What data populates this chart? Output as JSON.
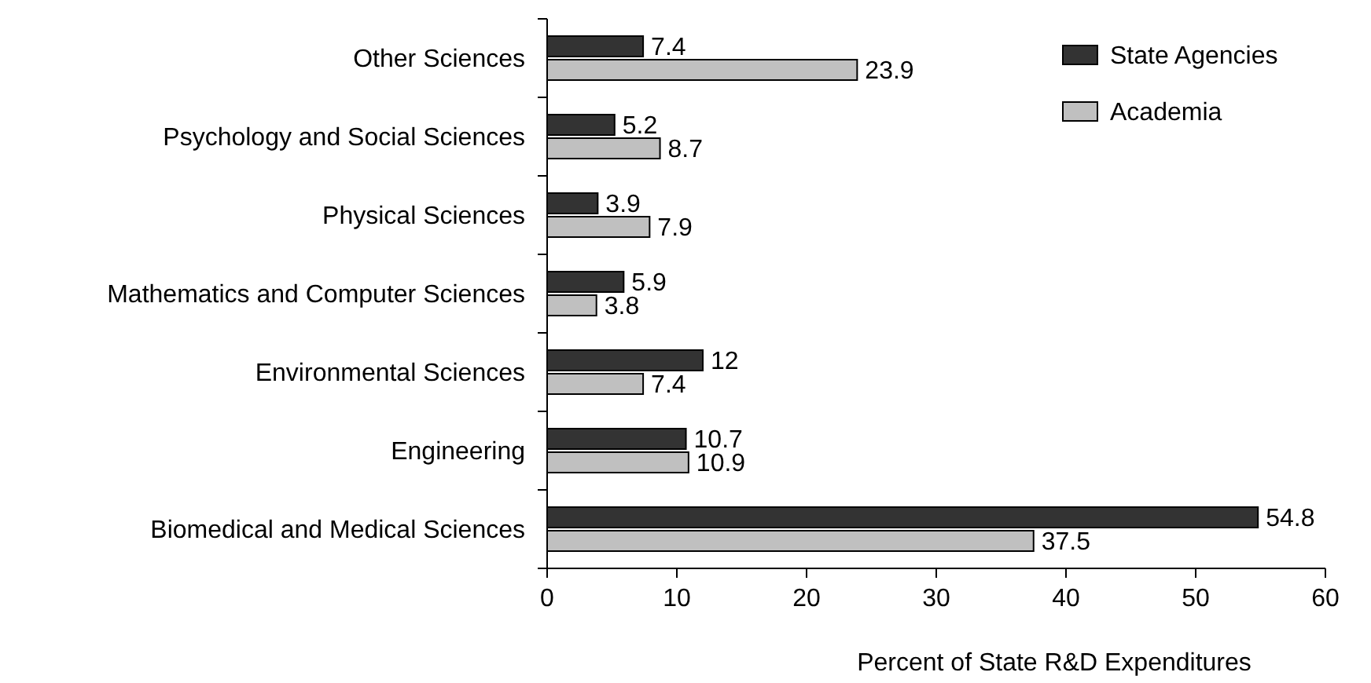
{
  "chart_data": {
    "type": "bar",
    "orientation": "horizontal",
    "xlabel": "Percent of State R&D Expenditures",
    "categories": [
      "Other Sciences",
      "Psychology and Social Sciences",
      "Physical Sciences",
      "Mathematics and Computer Sciences",
      "Environmental Sciences",
      "Engineering",
      "Biomedical and Medical Sciences"
    ],
    "series": [
      {
        "name": "State Agencies",
        "color": "#333333",
        "values": [
          7.4,
          5.2,
          3.9,
          5.9,
          12,
          10.7,
          54.8
        ]
      },
      {
        "name": "Academia",
        "color": "#c0c0c0",
        "values": [
          23.9,
          8.7,
          7.9,
          3.8,
          7.4,
          10.9,
          37.5
        ]
      }
    ],
    "xlim": [
      0,
      60
    ],
    "xticks": [
      0,
      10,
      20,
      30,
      40,
      50,
      60
    ],
    "data_labels": true,
    "legend": "top right",
    "grid": false
  }
}
